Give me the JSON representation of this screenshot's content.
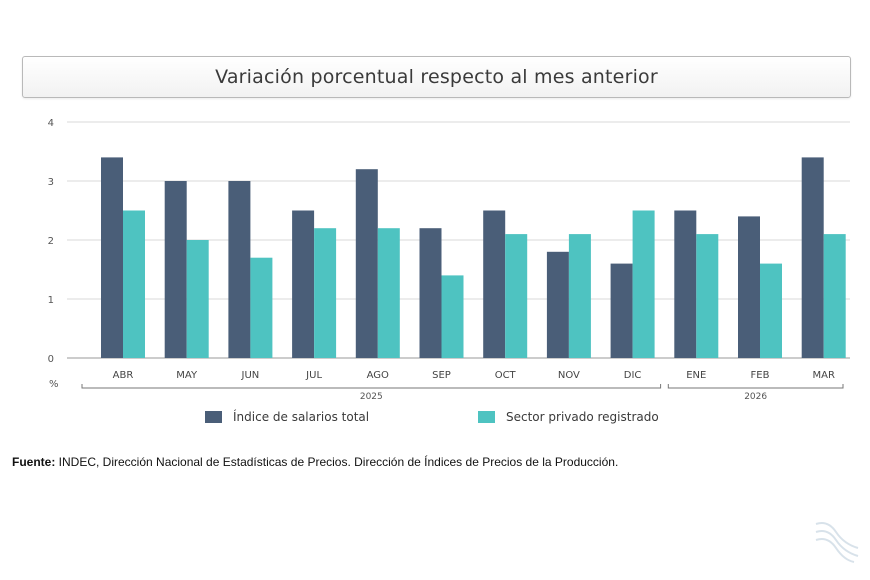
{
  "chart_data": {
    "type": "bar",
    "title": "Variación porcentual respecto al mes anterior",
    "ylabel": "%",
    "ylim": [
      0,
      4
    ],
    "yticks": [
      "0",
      "1",
      "2",
      "3",
      "4"
    ],
    "grid": true,
    "categories": [
      "ABR",
      "MAY",
      "JUN",
      "JUL",
      "AGO",
      "SEP",
      "OCT",
      "NOV",
      "DIC",
      "ENE",
      "FEB",
      "MAR"
    ],
    "groups": [
      {
        "label": "2025",
        "from": 0,
        "to": 8
      },
      {
        "label": "2026",
        "from": 9,
        "to": 11
      }
    ],
    "series": [
      {
        "name": "Índice de salarios total",
        "color": "#4a5e78",
        "values": [
          3.4,
          3.0,
          3.0,
          2.5,
          3.2,
          2.2,
          2.5,
          1.8,
          1.6,
          2.5,
          2.4,
          3.4
        ]
      },
      {
        "name": "Sector privado registrado",
        "color": "#4ec3c1",
        "values": [
          2.5,
          2.0,
          1.7,
          2.2,
          2.2,
          1.4,
          2.1,
          2.1,
          2.5,
          2.1,
          1.6,
          2.1
        ]
      }
    ],
    "legend_position": "bottom"
  },
  "source": {
    "label": "Fuente:",
    "text": " INDEC, Dirección Nacional de Estadísticas de Precios. Dirección de Índices de Precios de la Producción."
  }
}
